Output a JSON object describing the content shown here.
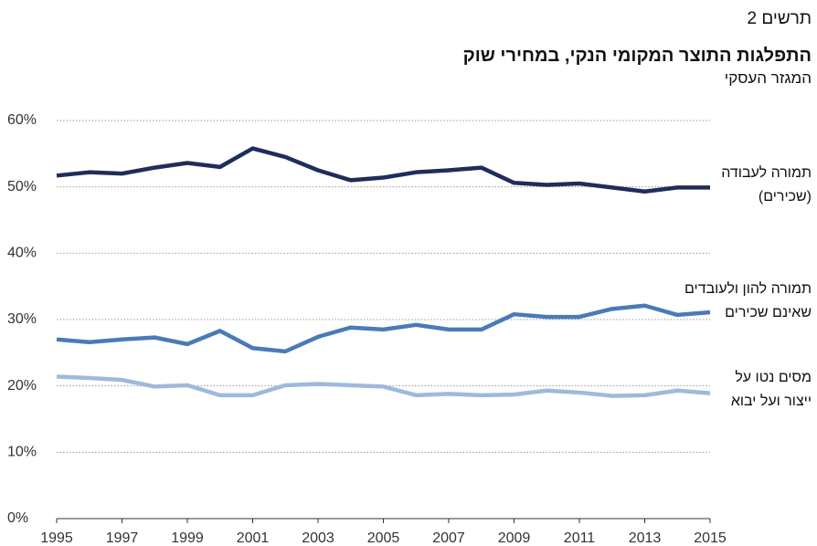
{
  "chart_data": {
    "type": "line",
    "kicker": "תרשים 2",
    "title": "התפלגות התוצר המקומי הנקי, במחירי שוק",
    "subtitle": "המגזר העסקי",
    "x": [
      1995,
      1996,
      1997,
      1998,
      1999,
      2000,
      2001,
      2002,
      2003,
      2004,
      2005,
      2006,
      2007,
      2008,
      2009,
      2010,
      2011,
      2012,
      2013,
      2014,
      2015
    ],
    "xlim": [
      1995,
      2015
    ],
    "xticks": [
      1995,
      1997,
      1999,
      2001,
      2003,
      2005,
      2007,
      2009,
      2011,
      2013,
      2015
    ],
    "ylim": [
      0,
      60
    ],
    "yticks": [
      {
        "value": 0,
        "label": "0%"
      },
      {
        "value": 10,
        "label": "10%"
      },
      {
        "value": 20,
        "label": "20%"
      },
      {
        "value": 30,
        "label": "30%"
      },
      {
        "value": 40,
        "label": "40%"
      },
      {
        "value": 50,
        "label": "50%"
      },
      {
        "value": 60,
        "label": "60%"
      }
    ],
    "grid": true,
    "series": [
      {
        "name": "תמורה לעבודה (שכירים)",
        "color": "#1f2d5c",
        "values": [
          51.7,
          52.2,
          52.0,
          52.9,
          53.6,
          53.0,
          55.8,
          54.5,
          52.5,
          51.0,
          51.4,
          52.2,
          52.5,
          52.9,
          50.6,
          50.3,
          50.5,
          49.9,
          49.3,
          49.9,
          49.9
        ]
      },
      {
        "name": "תמורה להון ולעובדים שאינם שכירים",
        "color": "#4a7ab8",
        "values": [
          27.0,
          26.6,
          27.0,
          27.3,
          26.3,
          28.3,
          25.7,
          25.2,
          27.4,
          28.8,
          28.5,
          29.2,
          28.5,
          28.5,
          30.8,
          30.4,
          30.4,
          31.6,
          32.1,
          30.7,
          31.1
        ]
      },
      {
        "name": "מסים נטו על ייצור ועל יבוא",
        "color": "#9ebadb",
        "values": [
          21.4,
          21.2,
          20.9,
          19.9,
          20.1,
          18.6,
          18.6,
          20.1,
          20.3,
          20.1,
          19.9,
          18.6,
          18.8,
          18.6,
          18.7,
          19.3,
          19.0,
          18.5,
          18.6,
          19.3,
          18.9
        ]
      }
    ]
  }
}
